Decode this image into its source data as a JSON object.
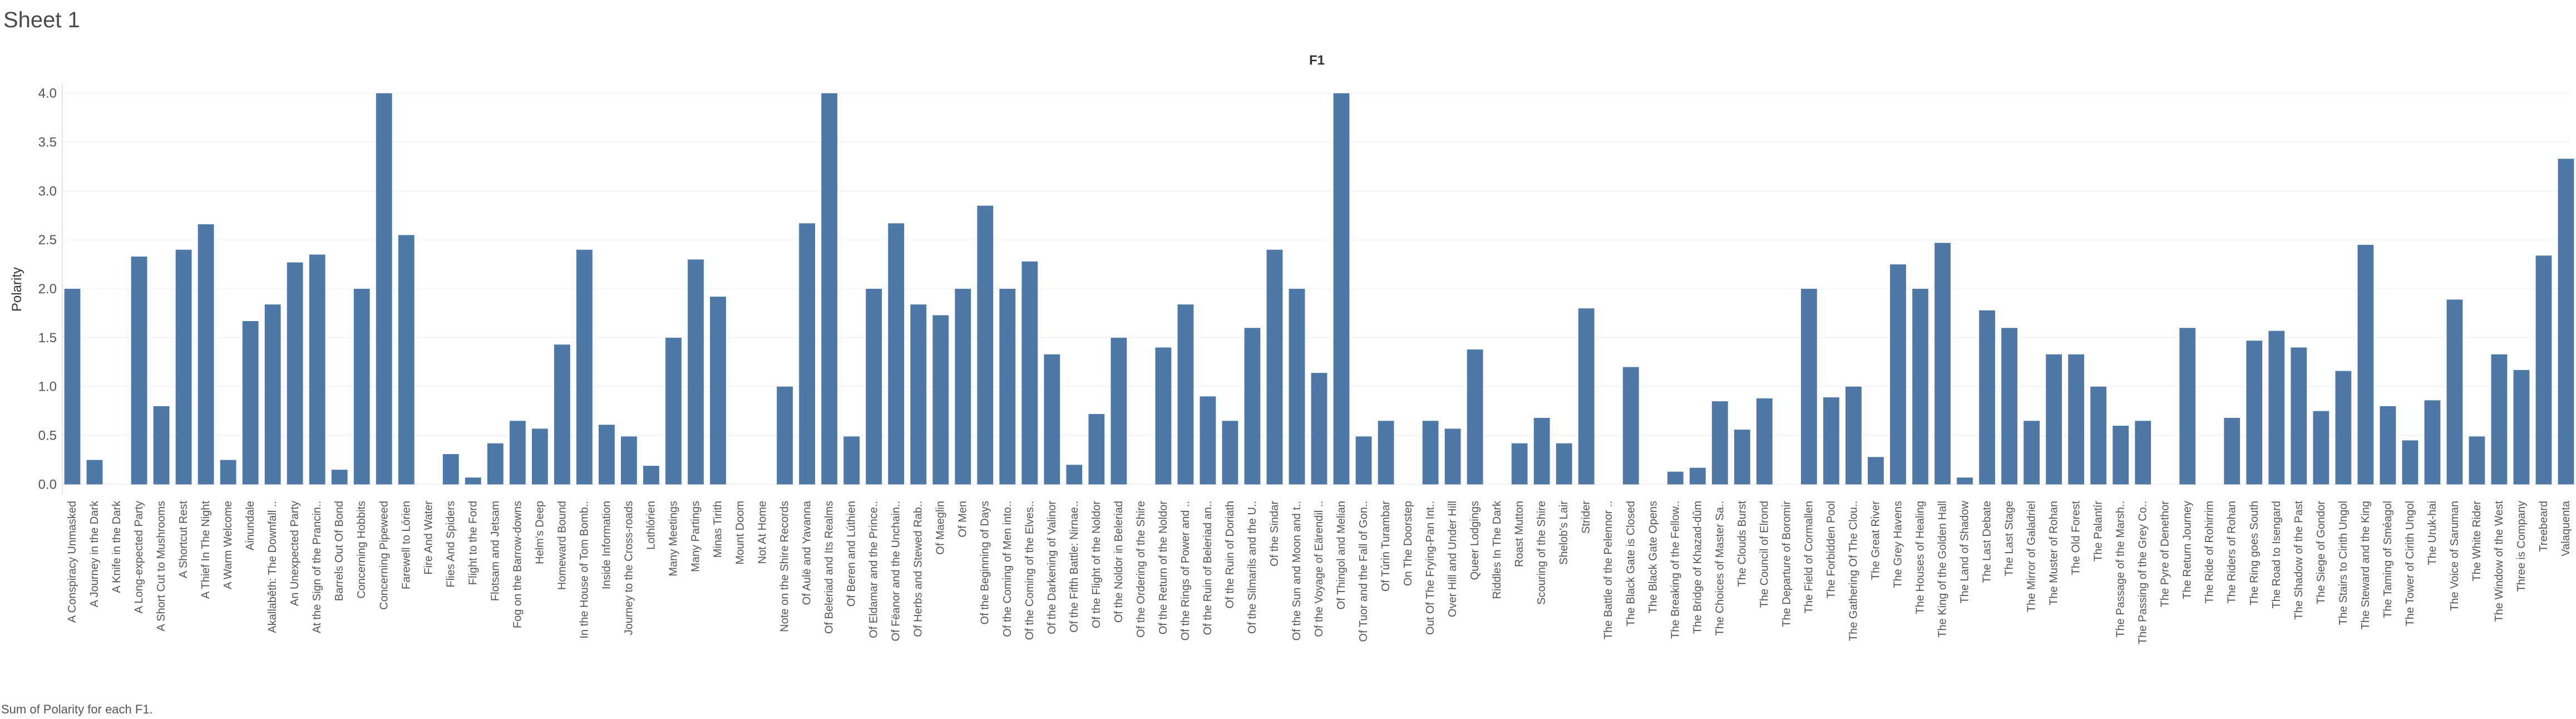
{
  "sheet": {
    "title": "Sheet 1",
    "caption": "Sum of Polarity for each F1."
  },
  "chart_data": {
    "type": "bar",
    "title": "F1",
    "xlabel": "",
    "ylabel": "Polarity",
    "ylim": [
      -0.1,
      4.1
    ],
    "yticks": [
      "0.0",
      "0.5",
      "1.0",
      "1.5",
      "2.0",
      "2.5",
      "3.0",
      "3.5",
      "4.0"
    ],
    "grid": true,
    "color": "#4e79a7",
    "categories": [
      "A Conspiracy Unmasked",
      "A Journey in the Dark",
      "A Knife in the Dark",
      "A Long-expected Party",
      "A Short Cut to Mushrooms",
      "A Shortcut Rest",
      "A Thief In The Night",
      "A Warm Welcome",
      "Ainundale",
      "Akallabêth: The Downfall ..",
      "An Unexpected Party",
      "At the Sign of the Prancin..",
      "Barrels Out Of Bond",
      "Concerning Hobbits",
      "Concerning Pipeweed",
      "Farewell to Lórien",
      "Fire And Water",
      "Flies And Spiders",
      "Flight to the Ford",
      "Flotsam and Jetsam",
      "Fog on the Barrow-downs",
      "Helm's Deep",
      "Homeward Bound",
      "In the House of Tom Bomb..",
      "Inside Information",
      "Journey to the Cross-roads",
      "Lothlórien",
      "Many Meetings",
      "Many Partings",
      "Minas Tirith",
      "Mount Doom",
      "Not At Home",
      "Note on the Shire Records",
      "Of Aulë and Yavanna",
      "Of Beleriad and Its Realms",
      "Of Beren and Lúthien",
      "Of Eldamar and the Prince..",
      "Of Fëanor and the Unchain..",
      "Of Herbs and Stewed Rab..",
      "Of Maeglin",
      "Of Men",
      "Of the Beginning of Days",
      "Of the Coming of Men into..",
      "Of the Coming of the Elves..",
      "Of the Darkening of Valinor",
      "Of the Fifth Battle: Nirnae..",
      "Of the Flight of the Noldor",
      "Of the Noldor in Beleriad",
      "Of the Ordering of the Shire",
      "Of the Return of the Noldor",
      "Of the Rings of Power and ..",
      "Of the Ruin of Beleriad an..",
      "Of the Ruin of Doriath",
      "Of the Silmarils and the U..",
      "Of the Sindar",
      "Of the Sun and Moon and t..",
      "Of the Voyage of Eärendil ..",
      "Of Thingol and Melian",
      "Of Tuor and the Fall of Gon..",
      "Of Túrin Turambar",
      "On The Doorstep",
      "Out Of The Frying-Pan Int..",
      "Over Hill and Under Hill",
      "Queer Lodgings",
      "Riddles In The Dark",
      "Roast Mutton",
      "Scouring of the Shire",
      "Shelob's Lair",
      "Strider",
      "The Battle of the Pelennor ..",
      "The Black Gate is Closed",
      "The Black Gate Opens",
      "The Breaking of the Fellow..",
      "The Bridge of Khazad-dûm",
      "The Choices of Master Sa..",
      "The Clouds Burst",
      "The Council of Elrond",
      "The Departure of Boromir",
      "The Field of Cormallen",
      "The Forbidden Pool",
      "The Gathering Of The Clou..",
      "The Great River",
      "The Grey Havens",
      "The Houses of Healing",
      "The King of the Golden Hall",
      "The Land of Shadow",
      "The Last Debate",
      "The Last Stage",
      "The Mirror of Galadriel",
      "The Muster of Rohan",
      "The Old Forest",
      "The Palantír",
      "The Passage of the Marsh..",
      "The Passing of the Grey Co..",
      "The Pyre of Denethor",
      "The Return Journey",
      "The Ride of Rohirrim",
      "The Riders of Rohan",
      "The Ring goes South",
      "The Road to Isengard",
      "The Shadow of the Past",
      "The Siege of Gondor",
      "The Stairs to Cirith Ungol",
      "The Steward and the King",
      "The Taming of Sméagol",
      "The Tower of Cirith Ungol",
      "The Uruk-hai",
      "The Voice of Saruman",
      "The White Rider",
      "The Window of the West",
      "Three is Company",
      "Treebeard",
      "Valaquenta"
    ],
    "values": [
      2.0,
      0.25,
      0.0,
      2.33,
      0.8,
      2.4,
      2.66,
      0.25,
      1.67,
      1.84,
      2.27,
      2.35,
      0.15,
      2.0,
      4.0,
      2.55,
      0.0,
      0.31,
      0.07,
      0.42,
      0.65,
      0.57,
      1.43,
      2.4,
      0.61,
      0.49,
      0.19,
      1.5,
      2.3,
      1.92,
      0.0,
      0.0,
      1.0,
      2.67,
      4.0,
      0.49,
      2.0,
      2.67,
      1.84,
      1.73,
      2.0,
      2.85,
      2.0,
      2.28,
      1.33,
      0.2,
      0.72,
      1.5,
      0.0,
      1.4,
      1.84,
      0.9,
      0.65,
      1.6,
      2.4,
      2.0,
      1.14,
      4.0,
      0.49,
      0.65,
      0.0,
      0.65,
      0.57,
      1.38,
      0.0,
      0.42,
      0.68,
      0.42,
      1.8,
      0.0,
      1.2,
      0.0,
      0.13,
      0.17,
      0.85,
      0.56,
      0.88,
      0.0,
      2.0,
      0.89,
      1.0,
      0.28,
      2.25,
      2.0,
      2.47,
      0.07,
      1.78,
      1.6,
      0.65,
      1.33,
      1.33,
      1.0,
      0.6,
      0.65,
      0.0,
      1.6,
      0.0,
      0.68,
      1.47,
      1.57,
      1.4,
      0.75,
      1.16,
      2.45,
      0.8,
      0.45,
      0.86,
      1.89,
      0.49,
      1.33,
      1.17,
      2.34,
      3.33
    ]
  }
}
